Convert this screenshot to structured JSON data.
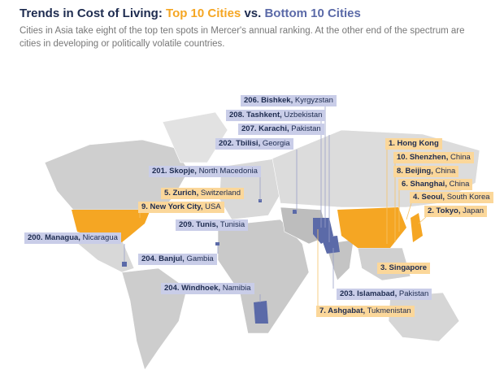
{
  "header": {
    "title": {
      "lead": "Trends in Cost of Living:",
      "top": "Top 10 Cities",
      "vs": "vs.",
      "bottom": "Bottom 10 Cities"
    },
    "subtitle": "Cities in Asia take eight of the top ten spots in Mercer's annual ranking. At the other end of the spectrum are cities in developing or politically volatile countries."
  },
  "labels": {
    "bottom": [
      {
        "city": "206. Bishkek,",
        "country": "Kyrgyzstan"
      },
      {
        "city": "208. Tashkent,",
        "country": "Uzbekistan"
      },
      {
        "city": "207. Karachi,",
        "country": "Pakistan"
      },
      {
        "city": "202. Tbilisi,",
        "country": "Georgia"
      },
      {
        "city": "201. Skopje,",
        "country": "North Macedonia"
      },
      {
        "city": "209. Tunis,",
        "country": "Tunisia"
      },
      {
        "city": "200. Managua,",
        "country": "Nicaragua"
      },
      {
        "city": "204. Banjul,",
        "country": "Gambia"
      },
      {
        "city": "204. Windhoek,",
        "country": "Namibia"
      },
      {
        "city": "203. Islamabad,",
        "country": "Pakistan"
      }
    ],
    "top": [
      {
        "city": "1. Hong Kong"
      },
      {
        "city": "10. Shenzhen,",
        "country": "China"
      },
      {
        "city": "8. Beijing,",
        "country": "China"
      },
      {
        "city": "6. Shanghai,",
        "country": "China"
      },
      {
        "city": "5. Zurich,",
        "country": "Switzerland"
      },
      {
        "city": "4. Seoul,",
        "country": "South Korea"
      },
      {
        "city": "9. New York City,",
        "country": "USA"
      },
      {
        "city": "2. Tokyo,",
        "country": "Japan"
      },
      {
        "city": "3. Singapore"
      },
      {
        "city": "7. Ashgabat,",
        "country": "Tukmenistan"
      }
    ]
  }
}
